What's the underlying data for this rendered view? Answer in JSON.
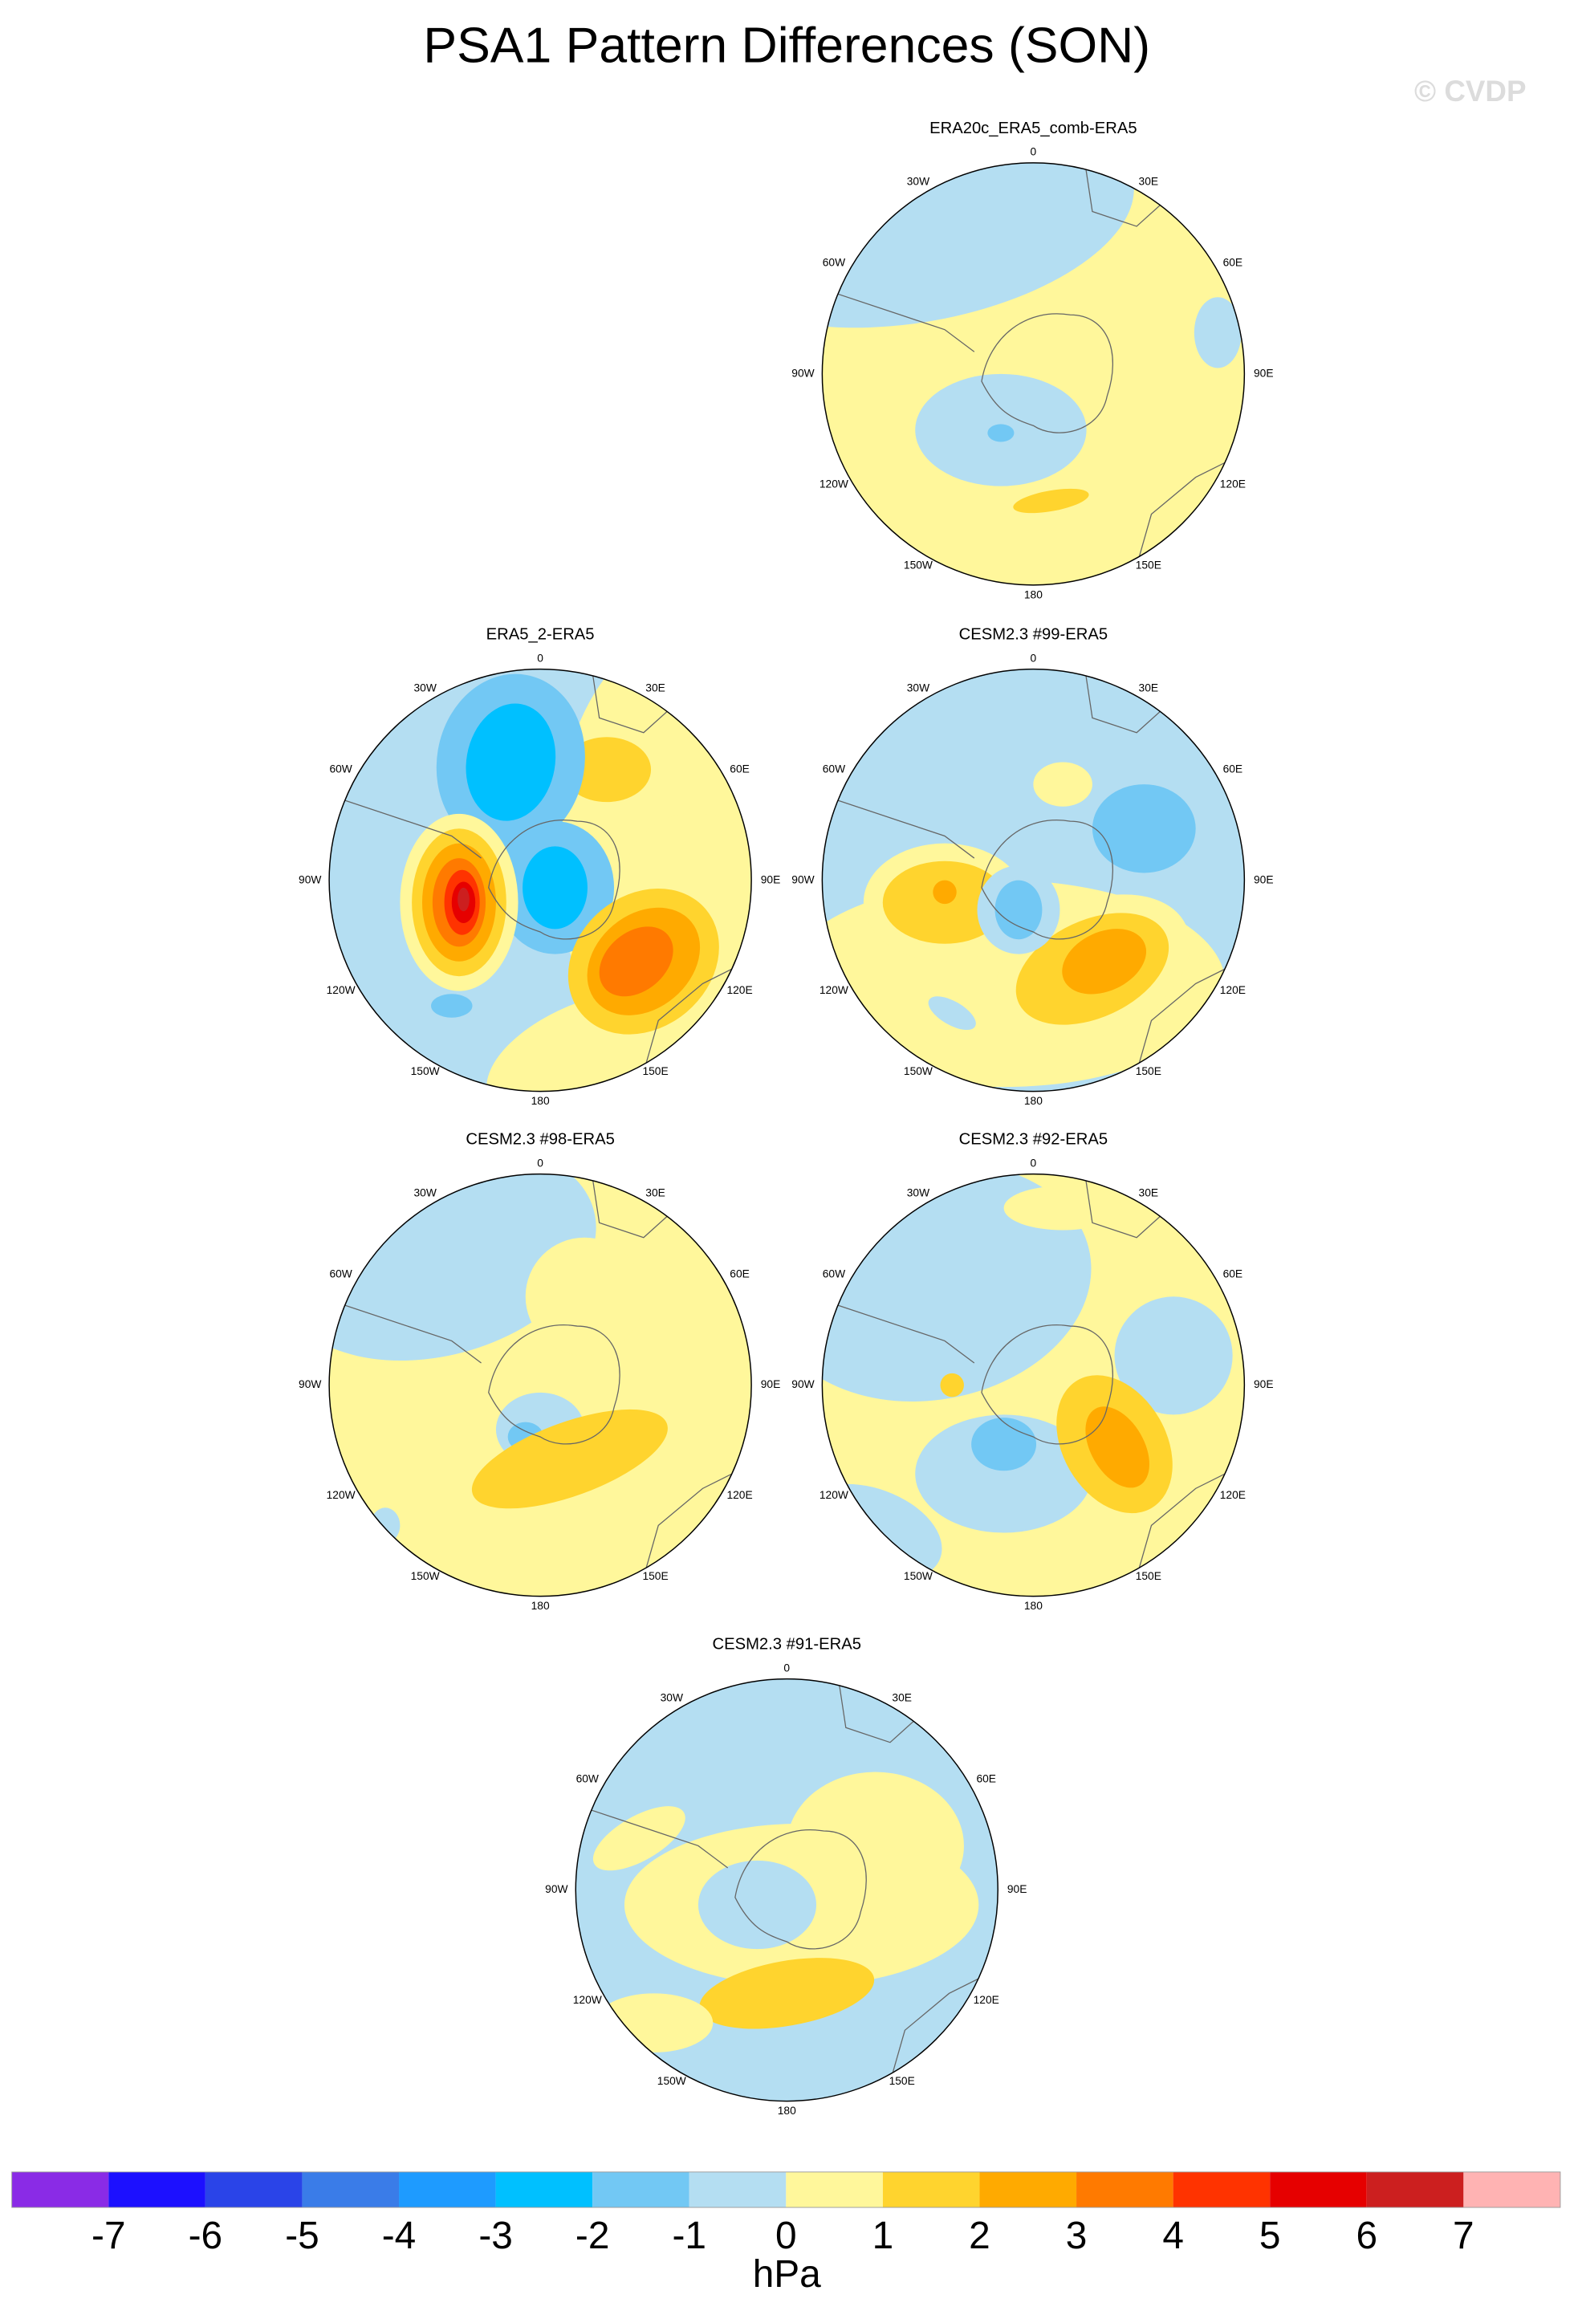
{
  "title": "PSA1 Pattern Differences (SON)",
  "watermark": "© CVDP",
  "panels": [
    {
      "title": "ERA20c_ERA5_comb-ERA5"
    },
    {
      "title": "ERA5_2-ERA5"
    },
    {
      "title": "CESM2.3 #99-ERA5"
    },
    {
      "title": "CESM2.3 #98-ERA5"
    },
    {
      "title": "CESM2.3 #92-ERA5"
    },
    {
      "title": "CESM2.3 #91-ERA5"
    }
  ],
  "longitude_labels": [
    "0",
    "30E",
    "60E",
    "90E",
    "120E",
    "150E",
    "180",
    "150W",
    "120W",
    "90W",
    "60W",
    "30W"
  ],
  "colorbar": {
    "levels": [
      -7,
      -6,
      -5,
      -4,
      -3,
      -2,
      -1,
      0,
      1,
      2,
      3,
      4,
      5,
      6,
      7
    ],
    "colors": [
      "#8a2be6",
      "#1c10ff",
      "#2a44e8",
      "#3a7ce8",
      "#1e9bff",
      "#00c0ff",
      "#72c8f4",
      "#b4def2",
      "#fff79b",
      "#ffd42e",
      "#ffaa00",
      "#ff7a00",
      "#ff3300",
      "#e60000",
      "#cc1f1f",
      "#ffb3b3"
    ],
    "unit": "hPa"
  }
}
